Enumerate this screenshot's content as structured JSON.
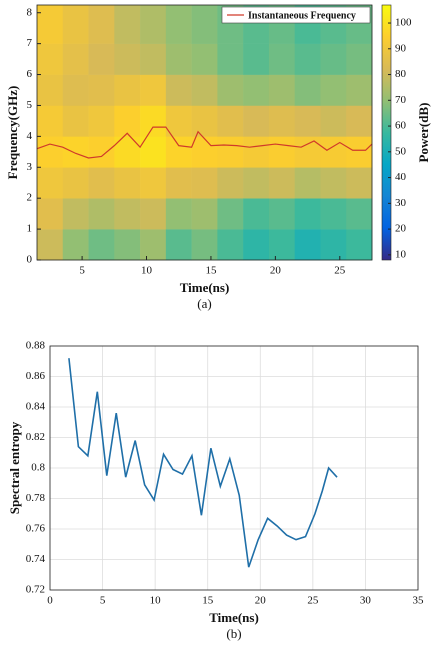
{
  "chart_data": [
    {
      "type": "heatmap",
      "xlabel": "Time(ns)",
      "ylabel": "Frequency(GHz)",
      "caption": "(a)",
      "x_bins": [
        1.5,
        3.5,
        5.5,
        7.5,
        9.5,
        11.5,
        13.5,
        15.5,
        17.5,
        19.5,
        21.5,
        23.5,
        25.5,
        27.5
      ],
      "y_bins": [
        0,
        1,
        2,
        3,
        4,
        5,
        6,
        7,
        8.25
      ],
      "z": [
        [
          80,
          70,
          65,
          68,
          72,
          62,
          66,
          60,
          55,
          58,
          52,
          55,
          58
        ],
        [
          85,
          78,
          75,
          78,
          80,
          70,
          72,
          65,
          60,
          62,
          58,
          60,
          62
        ],
        [
          90,
          88,
          85,
          88,
          90,
          85,
          84,
          80,
          78,
          80,
          76,
          78,
          80
        ],
        [
          95,
          96,
          95,
          98,
          100,
          96,
          95,
          94,
          92,
          94,
          92,
          93,
          94
        ],
        [
          92,
          88,
          90,
          95,
          98,
          90,
          88,
          85,
          82,
          84,
          82,
          80,
          82
        ],
        [
          88,
          84,
          85,
          88,
          90,
          80,
          78,
          72,
          70,
          72,
          68,
          70,
          72
        ],
        [
          90,
          86,
          82,
          80,
          78,
          72,
          70,
          65,
          62,
          65,
          62,
          64,
          66
        ],
        [
          92,
          88,
          84,
          78,
          75,
          70,
          68,
          65,
          62,
          64,
          60,
          62,
          64
        ]
      ],
      "colorbar_label": "Power(dB)",
      "clim": [
        8,
        107
      ],
      "cticks": [
        10,
        20,
        30,
        40,
        50,
        60,
        70,
        80,
        90,
        100
      ],
      "colormap": [
        "#352a87",
        "#0363e1",
        "#1485d4",
        "#06a7c6",
        "#38b99e",
        "#92bf73",
        "#d9ba56",
        "#fcce2e",
        "#f9fb0e"
      ],
      "xlim": [
        1.5,
        27.5
      ],
      "xticks": [
        5,
        10,
        15,
        20,
        25
      ],
      "ylim": [
        0,
        8.25
      ],
      "yticks": [
        0,
        1,
        2,
        3,
        4,
        5,
        6,
        7,
        8
      ],
      "legend": "upper right",
      "series": [
        {
          "name": "Instantaneous Frequency",
          "color": "#d03a2a",
          "x": [
            1.5,
            2.5,
            3.5,
            4.5,
            5.5,
            6.5,
            7.5,
            8.5,
            9.5,
            10.5,
            11.5,
            12.5,
            13.5,
            14,
            15,
            16,
            17,
            18,
            19,
            20,
            21,
            22,
            23,
            24,
            25,
            26,
            27,
            27.5
          ],
          "values": [
            3.6,
            3.75,
            3.65,
            3.45,
            3.3,
            3.35,
            3.7,
            4.1,
            3.65,
            4.3,
            4.3,
            3.7,
            3.65,
            4.15,
            3.7,
            3.72,
            3.7,
            3.65,
            3.7,
            3.75,
            3.7,
            3.65,
            3.85,
            3.55,
            3.8,
            3.55,
            3.55,
            3.75
          ]
        }
      ]
    },
    {
      "type": "line",
      "xlabel": "Time(ns)",
      "ylabel": "Spectral entropy",
      "caption": "(b)",
      "x": [
        1.8,
        2.7,
        3.6,
        4.5,
        5.4,
        6.3,
        7.2,
        8.1,
        9.0,
        9.9,
        10.8,
        11.7,
        12.6,
        13.5,
        14.4,
        15.3,
        16.2,
        17.1,
        18.0,
        18.9,
        19.8,
        20.7,
        21.6,
        22.5,
        23.4,
        24.3,
        25.2,
        25.9,
        26.5,
        27.3
      ],
      "values": [
        0.872,
        0.814,
        0.808,
        0.85,
        0.795,
        0.836,
        0.794,
        0.818,
        0.789,
        0.779,
        0.809,
        0.799,
        0.796,
        0.808,
        0.769,
        0.813,
        0.788,
        0.806,
        0.782,
        0.735,
        0.753,
        0.767,
        0.762,
        0.756,
        0.753,
        0.755,
        0.77,
        0.785,
        0.8,
        0.794
      ],
      "color": "#1f6fa8",
      "xlim": [
        0,
        35
      ],
      "xticks": [
        0,
        5,
        10,
        15,
        20,
        25,
        30,
        35
      ],
      "ylim": [
        0.72,
        0.88
      ],
      "yticks": [
        0.72,
        0.74,
        0.76,
        0.78,
        0.8,
        0.82,
        0.84,
        0.86,
        0.88
      ],
      "grid": true
    }
  ]
}
